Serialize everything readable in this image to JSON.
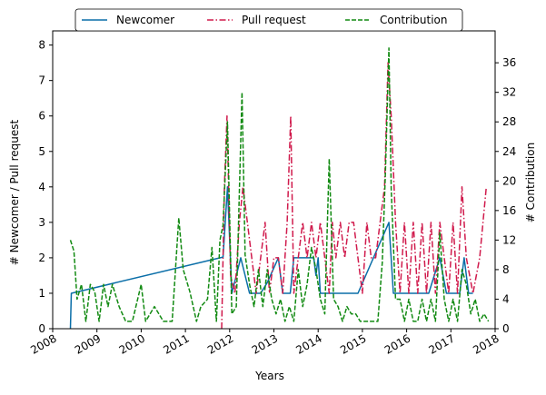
{
  "chart_data": {
    "type": "line",
    "xlabel": "Years",
    "ylabel_left": "# Newcomer / Pull request",
    "ylabel_right": "# Contribution",
    "xlim": [
      2008,
      2018
    ],
    "ylim_left": [
      0,
      8.4
    ],
    "ylim_right": [
      0,
      40.32
    ],
    "x_ticks": [
      2008,
      2009,
      2010,
      2011,
      2012,
      2013,
      2014,
      2015,
      2016,
      2017,
      2018
    ],
    "y_ticks_left": [
      0,
      1,
      2,
      3,
      4,
      5,
      6,
      7,
      8
    ],
    "y_ticks_right": [
      0,
      4,
      8,
      12,
      16,
      20,
      24,
      28,
      32,
      36
    ],
    "legend_position": "top-center",
    "grid": false,
    "series": [
      {
        "name": "Newcomer",
        "axis": "left",
        "color": "#0a6ea8",
        "dash": "solid",
        "points": [
          [
            2008.4,
            0
          ],
          [
            2008.42,
            1
          ],
          [
            2011.85,
            2.02
          ],
          [
            2011.95,
            4
          ],
          [
            2012.05,
            1
          ],
          [
            2012.25,
            2
          ],
          [
            2012.45,
            1
          ],
          [
            2012.7,
            1
          ],
          [
            2012.85,
            1.3
          ],
          [
            2013.1,
            2
          ],
          [
            2013.2,
            1
          ],
          [
            2013.37,
            1
          ],
          [
            2013.45,
            2
          ],
          [
            2013.7,
            2
          ],
          [
            2013.9,
            2
          ],
          [
            2013.95,
            1.5
          ],
          [
            2014.0,
            2
          ],
          [
            2014.05,
            1
          ],
          [
            2014.3,
            1
          ],
          [
            2014.5,
            1
          ],
          [
            2014.9,
            1
          ],
          [
            2015.6,
            3
          ],
          [
            2015.7,
            1
          ],
          [
            2015.95,
            1
          ],
          [
            2016.2,
            1
          ],
          [
            2016.5,
            1
          ],
          [
            2016.75,
            2
          ],
          [
            2016.9,
            1
          ],
          [
            2017.2,
            1
          ],
          [
            2017.3,
            2
          ],
          [
            2017.4,
            1
          ],
          [
            2017.5,
            1
          ]
        ]
      },
      {
        "name": "Pull request",
        "axis": "left",
        "color": "#d01a4c",
        "dash": "dashdot",
        "points": [
          [
            2011.82,
            0
          ],
          [
            2011.88,
            4
          ],
          [
            2011.94,
            6
          ],
          [
            2012.02,
            1.5
          ],
          [
            2012.12,
            1
          ],
          [
            2012.22,
            3
          ],
          [
            2012.3,
            4
          ],
          [
            2012.4,
            3
          ],
          [
            2012.5,
            2
          ],
          [
            2012.6,
            1
          ],
          [
            2012.7,
            2
          ],
          [
            2012.8,
            3
          ],
          [
            2012.9,
            1
          ],
          [
            2013.0,
            2
          ],
          [
            2013.1,
            2
          ],
          [
            2013.2,
            1
          ],
          [
            2013.3,
            3
          ],
          [
            2013.38,
            6
          ],
          [
            2013.45,
            1
          ],
          [
            2013.55,
            2
          ],
          [
            2013.65,
            3
          ],
          [
            2013.75,
            2
          ],
          [
            2013.85,
            3
          ],
          [
            2013.95,
            2
          ],
          [
            2014.05,
            3
          ],
          [
            2014.15,
            2
          ],
          [
            2014.25,
            1
          ],
          [
            2014.32,
            3
          ],
          [
            2014.4,
            2
          ],
          [
            2014.5,
            3
          ],
          [
            2014.6,
            2
          ],
          [
            2014.7,
            3
          ],
          [
            2014.8,
            3
          ],
          [
            2014.9,
            2
          ],
          [
            2015.0,
            1
          ],
          [
            2015.1,
            3
          ],
          [
            2015.2,
            2
          ],
          [
            2015.3,
            2
          ],
          [
            2015.4,
            3
          ],
          [
            2015.5,
            4
          ],
          [
            2015.58,
            7.5
          ],
          [
            2015.65,
            6
          ],
          [
            2015.75,
            3
          ],
          [
            2015.85,
            1
          ],
          [
            2015.95,
            3
          ],
          [
            2016.05,
            1
          ],
          [
            2016.15,
            3
          ],
          [
            2016.25,
            1
          ],
          [
            2016.35,
            3
          ],
          [
            2016.45,
            1
          ],
          [
            2016.55,
            3
          ],
          [
            2016.65,
            1
          ],
          [
            2016.75,
            3
          ],
          [
            2016.85,
            2
          ],
          [
            2016.95,
            1
          ],
          [
            2017.05,
            3
          ],
          [
            2017.15,
            1
          ],
          [
            2017.25,
            4
          ],
          [
            2017.35,
            2
          ],
          [
            2017.5,
            1
          ],
          [
            2017.65,
            2
          ],
          [
            2017.8,
            4
          ]
        ]
      },
      {
        "name": "Contribution",
        "axis": "right",
        "color": "#128a12",
        "dash": "dashed",
        "points": [
          [
            2008.4,
            12
          ],
          [
            2008.48,
            10.5
          ],
          [
            2008.55,
            4
          ],
          [
            2008.65,
            6
          ],
          [
            2008.75,
            1
          ],
          [
            2008.85,
            6
          ],
          [
            2008.95,
            5
          ],
          [
            2009.05,
            1
          ],
          [
            2009.15,
            6
          ],
          [
            2009.25,
            3
          ],
          [
            2009.35,
            6
          ],
          [
            2009.5,
            3
          ],
          [
            2009.65,
            1
          ],
          [
            2009.8,
            1
          ],
          [
            2010.0,
            6
          ],
          [
            2010.1,
            1
          ],
          [
            2010.3,
            3
          ],
          [
            2010.5,
            1
          ],
          [
            2010.7,
            1
          ],
          [
            2010.85,
            15
          ],
          [
            2010.95,
            8
          ],
          [
            2011.1,
            5
          ],
          [
            2011.25,
            1
          ],
          [
            2011.35,
            3
          ],
          [
            2011.5,
            4
          ],
          [
            2011.6,
            11
          ],
          [
            2011.7,
            1
          ],
          [
            2011.78,
            12
          ],
          [
            2011.85,
            14
          ],
          [
            2011.95,
            28
          ],
          [
            2012.05,
            2
          ],
          [
            2012.15,
            3
          ],
          [
            2012.28,
            32
          ],
          [
            2012.35,
            10
          ],
          [
            2012.45,
            6
          ],
          [
            2012.55,
            3
          ],
          [
            2012.65,
            8
          ],
          [
            2012.75,
            3
          ],
          [
            2012.85,
            8
          ],
          [
            2012.95,
            4
          ],
          [
            2013.05,
            2
          ],
          [
            2013.15,
            4
          ],
          [
            2013.25,
            1
          ],
          [
            2013.35,
            3
          ],
          [
            2013.45,
            1
          ],
          [
            2013.55,
            8
          ],
          [
            2013.65,
            3
          ],
          [
            2013.75,
            6
          ],
          [
            2013.85,
            11
          ],
          [
            2013.95,
            8
          ],
          [
            2014.05,
            4
          ],
          [
            2014.15,
            2
          ],
          [
            2014.25,
            23
          ],
          [
            2014.35,
            4
          ],
          [
            2014.45,
            3
          ],
          [
            2014.55,
            1
          ],
          [
            2014.65,
            3
          ],
          [
            2014.75,
            2
          ],
          [
            2014.85,
            2
          ],
          [
            2014.95,
            1
          ],
          [
            2015.05,
            1
          ],
          [
            2015.2,
            1
          ],
          [
            2015.35,
            1
          ],
          [
            2015.45,
            9
          ],
          [
            2015.52,
            21
          ],
          [
            2015.6,
            38
          ],
          [
            2015.65,
            19
          ],
          [
            2015.75,
            4
          ],
          [
            2015.85,
            4
          ],
          [
            2015.95,
            1
          ],
          [
            2016.05,
            4
          ],
          [
            2016.15,
            1
          ],
          [
            2016.25,
            1
          ],
          [
            2016.35,
            4
          ],
          [
            2016.45,
            1
          ],
          [
            2016.55,
            4
          ],
          [
            2016.65,
            1
          ],
          [
            2016.75,
            13
          ],
          [
            2016.85,
            4
          ],
          [
            2016.95,
            1
          ],
          [
            2017.05,
            4
          ],
          [
            2017.15,
            1
          ],
          [
            2017.25,
            8
          ],
          [
            2017.35,
            6
          ],
          [
            2017.45,
            2
          ],
          [
            2017.55,
            4
          ],
          [
            2017.65,
            1
          ],
          [
            2017.75,
            2
          ],
          [
            2017.85,
            1
          ]
        ]
      }
    ]
  }
}
